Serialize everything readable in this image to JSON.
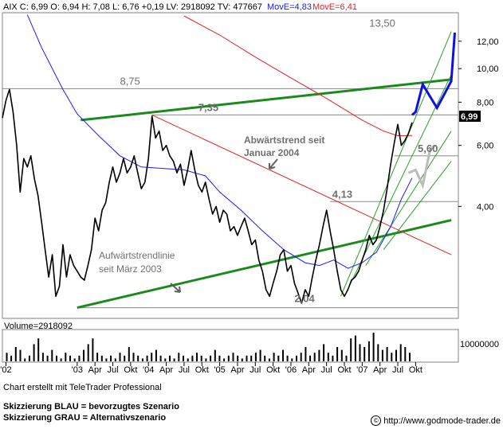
{
  "header": {
    "quote_line": "AIX C: 6,99 O: 6,94 H: 7,08 L: 6,76 +0,19 LV: 2918092 TV: 477667",
    "ma1_label": "MovE=4,83",
    "ma2_label": "MovE=6,41",
    "ma1_color": "#1a1aff",
    "ma2_color": "#e02020"
  },
  "chart_data": [
    {
      "type": "line",
      "title": "AIX",
      "scale": "log",
      "ylim": [
        1.9,
        14.5
      ],
      "y_ticks": [
        4.0,
        6.0,
        8.0,
        10.0,
        12.0
      ],
      "y_tick_labels": [
        "4,00",
        "6,00",
        "8,00",
        "10,00",
        "12,00"
      ],
      "last_price": 6.99,
      "last_price_label": "6,99",
      "x_tick_labels": [
        "'02",
        "'03",
        "Apr",
        "Jul",
        "Okt",
        "'04",
        "Apr",
        "Jul",
        "Okt",
        "'05",
        "Apr",
        "Jul",
        "Okt",
        "'06",
        "Apr",
        "Jul",
        "Okt",
        "'07",
        "Apr",
        "Jul",
        "Okt"
      ],
      "price": [
        [
          2001.95,
          7.2
        ],
        [
          2002.0,
          8.1
        ],
        [
          2002.05,
          8.7
        ],
        [
          2002.1,
          7.5
        ],
        [
          2002.15,
          6.0
        ],
        [
          2002.2,
          4.4
        ],
        [
          2002.25,
          5.5
        ],
        [
          2002.3,
          5.2
        ],
        [
          2002.35,
          5.6
        ],
        [
          2002.4,
          4.8
        ],
        [
          2002.45,
          4.3
        ],
        [
          2002.5,
          3.6
        ],
        [
          2002.55,
          3.0
        ],
        [
          2002.6,
          2.5
        ],
        [
          2002.65,
          2.9
        ],
        [
          2002.7,
          2.2
        ],
        [
          2002.75,
          2.35
        ],
        [
          2002.8,
          3.1
        ],
        [
          2002.85,
          2.5
        ],
        [
          2002.9,
          2.9
        ],
        [
          2002.95,
          2.7
        ],
        [
          2003.0,
          2.6
        ],
        [
          2003.05,
          2.5
        ],
        [
          2003.1,
          2.45
        ],
        [
          2003.15,
          2.7
        ],
        [
          2003.2,
          3.0
        ],
        [
          2003.25,
          3.7
        ],
        [
          2003.3,
          3.4
        ],
        [
          2003.35,
          3.9
        ],
        [
          2003.4,
          4.1
        ],
        [
          2003.45,
          4.7
        ],
        [
          2003.5,
          5.2
        ],
        [
          2003.55,
          4.7
        ],
        [
          2003.6,
          5.0
        ],
        [
          2003.65,
          5.5
        ],
        [
          2003.7,
          5.0
        ],
        [
          2003.75,
          5.2
        ],
        [
          2003.8,
          5.6
        ],
        [
          2003.85,
          5.0
        ],
        [
          2003.9,
          4.5
        ],
        [
          2003.95,
          4.7
        ],
        [
          2004.0,
          5.5
        ],
        [
          2004.05,
          7.3
        ],
        [
          2004.1,
          6.3
        ],
        [
          2004.15,
          6.6
        ],
        [
          2004.2,
          5.8
        ],
        [
          2004.25,
          6.0
        ],
        [
          2004.3,
          5.6
        ],
        [
          2004.35,
          5.4
        ],
        [
          2004.4,
          5.0
        ],
        [
          2004.45,
          5.3
        ],
        [
          2004.5,
          4.6
        ],
        [
          2004.55,
          5.1
        ],
        [
          2004.6,
          5.8
        ],
        [
          2004.65,
          5.1
        ],
        [
          2004.7,
          4.6
        ],
        [
          2004.75,
          4.4
        ],
        [
          2004.8,
          4.7
        ],
        [
          2004.85,
          4.2
        ],
        [
          2004.9,
          3.8
        ],
        [
          2004.95,
          4.0
        ],
        [
          2005.0,
          3.6
        ],
        [
          2005.05,
          3.9
        ],
        [
          2005.1,
          3.8
        ],
        [
          2005.15,
          3.4
        ],
        [
          2005.2,
          3.5
        ],
        [
          2005.25,
          3.3
        ],
        [
          2005.3,
          3.5
        ],
        [
          2005.35,
          3.7
        ],
        [
          2005.4,
          3.4
        ],
        [
          2005.45,
          3.1
        ],
        [
          2005.5,
          3.2
        ],
        [
          2005.55,
          2.8
        ],
        [
          2005.6,
          2.6
        ],
        [
          2005.65,
          2.3
        ],
        [
          2005.7,
          2.2
        ],
        [
          2005.75,
          2.4
        ],
        [
          2005.8,
          2.6
        ],
        [
          2005.85,
          2.9
        ],
        [
          2005.9,
          3.0
        ],
        [
          2005.95,
          2.6
        ],
        [
          2006.0,
          2.7
        ],
        [
          2006.05,
          2.4
        ],
        [
          2006.1,
          2.25
        ],
        [
          2006.15,
          2.1
        ],
        [
          2006.2,
          2.3
        ],
        [
          2006.25,
          2.2
        ],
        [
          2006.3,
          2.5
        ],
        [
          2006.35,
          2.8
        ],
        [
          2006.4,
          3.1
        ],
        [
          2006.45,
          3.5
        ],
        [
          2006.5,
          3.9
        ],
        [
          2006.55,
          3.4
        ],
        [
          2006.6,
          3.0
        ],
        [
          2006.65,
          2.6
        ],
        [
          2006.7,
          2.3
        ],
        [
          2006.75,
          2.2
        ],
        [
          2006.8,
          2.3
        ],
        [
          2006.85,
          2.45
        ],
        [
          2006.9,
          2.5
        ],
        [
          2006.95,
          2.6
        ],
        [
          2007.0,
          2.8
        ],
        [
          2007.05,
          3.0
        ],
        [
          2007.1,
          3.3
        ],
        [
          2007.15,
          3.1
        ],
        [
          2007.2,
          3.2
        ],
        [
          2007.25,
          3.5
        ],
        [
          2007.3,
          3.9
        ],
        [
          2007.35,
          4.5
        ],
        [
          2007.4,
          5.3
        ],
        [
          2007.45,
          6.1
        ],
        [
          2007.5,
          6.9
        ],
        [
          2007.55,
          6.0
        ],
        [
          2007.6,
          6.2
        ],
        [
          2007.65,
          6.5
        ],
        [
          2007.7,
          6.99
        ]
      ],
      "ma_blue": [
        [
          2002.3,
          14.3
        ],
        [
          2002.5,
          11.5
        ],
        [
          2002.8,
          8.7
        ],
        [
          2003.0,
          7.4
        ],
        [
          2003.3,
          6.4
        ],
        [
          2003.6,
          5.6
        ],
        [
          2003.9,
          5.2
        ],
        [
          2004.2,
          5.15
        ],
        [
          2004.5,
          5.1
        ],
        [
          2004.8,
          4.9
        ],
        [
          2005.0,
          4.4
        ],
        [
          2005.3,
          3.9
        ],
        [
          2005.6,
          3.4
        ],
        [
          2005.9,
          3.0
        ],
        [
          2006.2,
          2.75
        ],
        [
          2006.4,
          2.7
        ],
        [
          2006.6,
          2.8
        ],
        [
          2006.8,
          2.65
        ],
        [
          2007.0,
          2.75
        ],
        [
          2007.2,
          2.95
        ],
        [
          2007.4,
          3.5
        ],
        [
          2007.55,
          4.2
        ],
        [
          2007.7,
          4.83
        ]
      ],
      "ma_red": [
        [
          2004.5,
          14.2
        ],
        [
          2005.0,
          12.5
        ],
        [
          2005.5,
          10.8
        ],
        [
          2006.0,
          9.4
        ],
        [
          2006.5,
          8.2
        ],
        [
          2007.0,
          7.1
        ],
        [
          2007.3,
          6.6
        ],
        [
          2007.5,
          6.4
        ],
        [
          2007.7,
          6.41
        ]
      ],
      "levels": [
        {
          "value": 13.5,
          "label": "13,50"
        },
        {
          "value": 8.75,
          "label": "8,75"
        },
        {
          "value": 7.35,
          "label": "7,35"
        },
        {
          "value": 4.13,
          "label": "4,13"
        },
        {
          "value": 5.6,
          "label": "5,60"
        },
        {
          "value": 2.04,
          "label": "2,04"
        }
      ],
      "trendlines": {
        "green_channel_upper": [
          [
            2003.05,
            7.1
          ],
          [
            2008.25,
            9.3
          ]
        ],
        "green_support": [
          [
            2003.0,
            2.04
          ],
          [
            2008.25,
            3.65
          ]
        ],
        "red_downtrend": [
          [
            2004.05,
            7.35
          ],
          [
            2008.25,
            2.9
          ]
        ],
        "green_steep": [
          [
            [
              2006.7,
              2.2
            ],
            [
              2008.25,
              12.8
            ]
          ],
          [
            [
              2006.75,
              2.2
            ],
            [
              2008.25,
              9.6
            ]
          ],
          [
            [
              2007.05,
              2.7
            ],
            [
              2008.25,
              6.6
            ]
          ],
          [
            [
              2007.3,
              3.0
            ],
            [
              2008.25,
              5.4
            ]
          ]
        ]
      },
      "scenarios": {
        "blue": [
          [
            2007.7,
            7.35
          ],
          [
            2007.75,
            7.5
          ],
          [
            2007.85,
            9.0
          ],
          [
            2008.05,
            7.7
          ],
          [
            2008.25,
            9.2
          ],
          [
            2008.3,
            12.7
          ]
        ],
        "gray": [
          [
            2007.65,
            5.0
          ],
          [
            2007.75,
            5.1
          ],
          [
            2007.85,
            4.6
          ],
          [
            2007.95,
            5.8
          ],
          [
            2008.02,
            6.0
          ]
        ]
      },
      "annotations": [
        {
          "text_lines": [
            "Abwärtstrend seit",
            "Januar 2004"
          ]
        },
        {
          "text_lines": [
            "Aufwärtstrendlinie",
            "seit März 2003"
          ]
        }
      ],
      "volume": {
        "label": "Volume=2918092",
        "axis_label": "10000000",
        "bars": [
          3,
          2,
          5,
          4,
          1,
          2,
          6,
          8,
          3,
          2,
          4,
          2,
          1,
          3,
          2,
          1,
          2,
          4,
          6,
          8,
          3,
          2,
          1,
          2,
          1,
          3,
          2,
          5,
          3,
          2,
          1,
          2,
          3,
          4,
          2,
          1,
          2,
          1,
          3,
          2,
          1,
          2,
          3,
          2,
          1,
          2,
          4,
          2,
          1,
          2,
          3,
          2,
          1,
          2,
          2,
          3,
          4,
          2,
          1,
          3,
          2,
          4,
          2,
          1,
          2,
          3,
          5,
          2,
          3,
          4,
          6,
          3,
          2,
          5,
          4,
          2,
          8,
          9,
          6,
          5,
          7,
          10,
          6,
          4,
          5,
          3,
          4,
          6,
          5,
          3
        ]
      }
    }
  ],
  "footer": {
    "credit": "Chart erstellt mit TeleTrader Professional",
    "legend_blue": "Skizzierung BLAU = bevorzugtes Szenario",
    "legend_gray": "Skizzierung GRAU = Alternativszenario",
    "copyright_symbol": "©",
    "url": "http://www.godmode-trader.de"
  }
}
